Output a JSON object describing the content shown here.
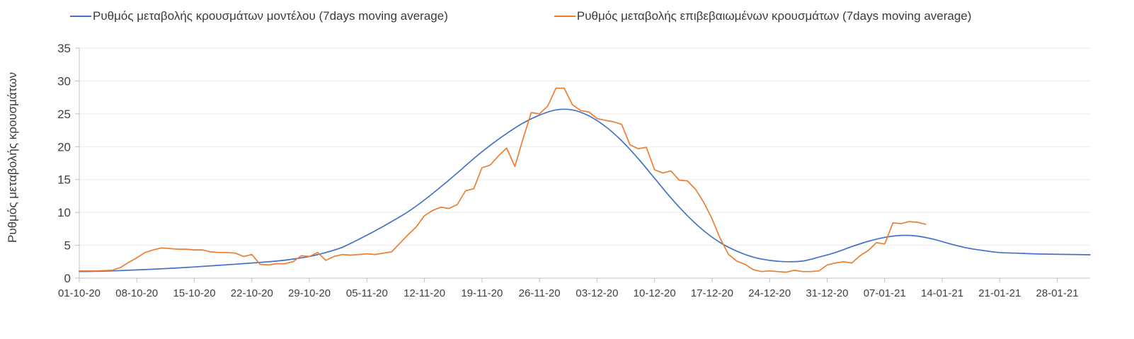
{
  "chart_data": {
    "type": "line",
    "title": "",
    "xlabel": "",
    "ylabel": "Ρυθμός μεταβολής κρουσμάτων",
    "ylim": [
      0,
      35
    ],
    "y_ticks": [
      0,
      5,
      10,
      15,
      20,
      25,
      30,
      35
    ],
    "x_tick_days": [
      0,
      7,
      14,
      21,
      28,
      35,
      42,
      49,
      56,
      63,
      70,
      77,
      84,
      91,
      98,
      105,
      112,
      119
    ],
    "x_tick_labels": [
      "01-10-20",
      "08-10-20",
      "15-10-20",
      "22-10-20",
      "29-10-20",
      "05-11-20",
      "12-11-20",
      "19-11-20",
      "26-11-20",
      "03-12-20",
      "10-12-20",
      "17-12-20",
      "24-12-20",
      "31-12-20",
      "07-01-21",
      "14-01-21",
      "21-01-21",
      "28-01-21"
    ],
    "x_max_days": 123,
    "grid": "horizontal",
    "legend_position": "top",
    "colors": {
      "model": "#4472c4",
      "confirmed": "#ed7d31",
      "grid": "#ebebeb",
      "axis": "#bfbfbf",
      "text": "#3f3f3f"
    },
    "series": [
      {
        "id": "model",
        "name": "Ρυθμός μεταβολής κρουσμάτων μοντέλου (7days moving average)",
        "color": "#4472c4",
        "smooth": true,
        "points": [
          [
            0,
            1.0
          ],
          [
            4,
            1.1
          ],
          [
            8,
            1.3
          ],
          [
            12,
            1.55
          ],
          [
            14,
            1.7
          ],
          [
            17,
            1.95
          ],
          [
            21,
            2.3
          ],
          [
            24,
            2.6
          ],
          [
            26,
            2.9
          ],
          [
            28,
            3.3
          ],
          [
            30,
            3.9
          ],
          [
            32,
            4.7
          ],
          [
            34,
            5.9
          ],
          [
            36,
            7.2
          ],
          [
            38,
            8.6
          ],
          [
            40,
            10.1
          ],
          [
            42,
            11.9
          ],
          [
            44,
            13.9
          ],
          [
            46,
            16.0
          ],
          [
            48,
            18.2
          ],
          [
            50,
            20.2
          ],
          [
            52,
            22.0
          ],
          [
            54,
            23.6
          ],
          [
            56,
            24.8
          ],
          [
            58,
            25.6
          ],
          [
            60,
            25.6
          ],
          [
            62,
            24.7
          ],
          [
            64,
            23.1
          ],
          [
            66,
            20.9
          ],
          [
            68,
            18.2
          ],
          [
            70,
            15.2
          ],
          [
            72,
            12.2
          ],
          [
            74,
            9.5
          ],
          [
            76,
            7.2
          ],
          [
            78,
            5.4
          ],
          [
            80,
            4.1
          ],
          [
            82,
            3.2
          ],
          [
            84,
            2.7
          ],
          [
            86,
            2.5
          ],
          [
            88,
            2.6
          ],
          [
            90,
            3.2
          ],
          [
            92,
            3.9
          ],
          [
            94,
            4.8
          ],
          [
            96,
            5.6
          ],
          [
            98,
            6.2
          ],
          [
            100,
            6.5
          ],
          [
            102,
            6.4
          ],
          [
            104,
            5.9
          ],
          [
            106,
            5.2
          ],
          [
            108,
            4.6
          ],
          [
            110,
            4.2
          ],
          [
            112,
            3.9
          ],
          [
            114,
            3.8
          ],
          [
            116,
            3.7
          ],
          [
            118,
            3.65
          ],
          [
            121,
            3.6
          ],
          [
            123,
            3.55
          ]
        ]
      },
      {
        "id": "confirmed",
        "name": "Ρυθμός μεταβολής επιβεβαιωμένων κρουσμάτων (7days moving average)",
        "color": "#ed7d31",
        "smooth": false,
        "start_day": 0,
        "step_days": 1,
        "values": [
          1.1,
          1.1,
          1.1,
          1.15,
          1.2,
          1.6,
          2.4,
          3.1,
          3.9,
          4.3,
          4.6,
          4.5,
          4.4,
          4.4,
          4.3,
          4.3,
          4.0,
          3.9,
          3.9,
          3.8,
          3.3,
          3.6,
          2.1,
          2.0,
          2.2,
          2.2,
          2.5,
          3.4,
          3.3,
          3.9,
          2.7,
          3.3,
          3.6,
          3.5,
          3.6,
          3.7,
          3.6,
          3.8,
          4.0,
          5.3,
          6.6,
          7.8,
          9.5,
          10.3,
          10.8,
          10.6,
          11.2,
          13.3,
          13.6,
          16.8,
          17.2,
          18.6,
          19.8,
          17.0,
          21.2,
          25.2,
          25.0,
          26.2,
          28.9,
          28.9,
          26.4,
          25.5,
          25.3,
          24.3,
          24.0,
          23.8,
          23.4,
          20.3,
          19.7,
          19.9,
          16.5,
          16.0,
          16.3,
          14.9,
          14.8,
          13.5,
          11.5,
          9.0,
          6.0,
          3.6,
          2.6,
          2.1,
          1.3,
          1.0,
          1.1,
          1.0,
          0.9,
          1.2,
          1.0,
          1.0,
          1.1,
          2.0,
          2.3,
          2.5,
          2.3,
          3.4,
          4.2,
          5.4,
          5.2,
          8.4,
          8.3,
          8.6,
          8.5,
          8.2
        ]
      }
    ]
  }
}
